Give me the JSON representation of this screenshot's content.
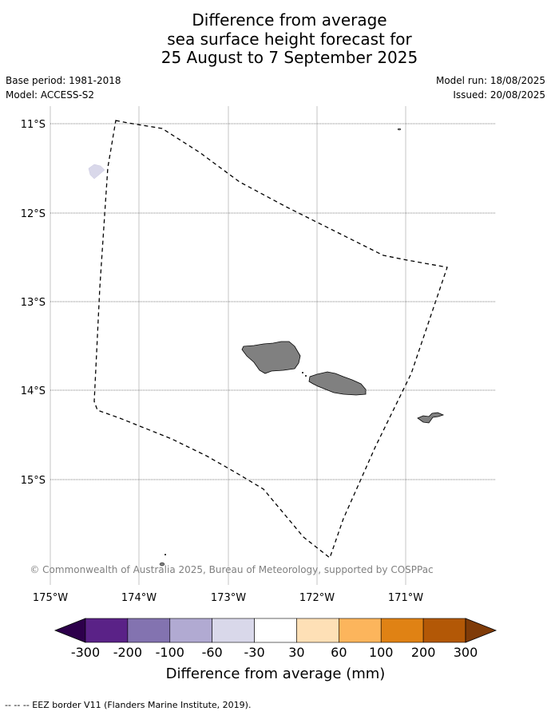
{
  "title": {
    "line1": "Difference from average",
    "line2": "sea surface height forecast for",
    "line3": "25 August to 7 September 2025"
  },
  "meta": {
    "base_period": "Base period: 1981-2018",
    "model": "Model: ACCESS-S2",
    "model_run": "Model run: 18/08/2025",
    "issued": "Issued: 20/08/2025"
  },
  "map": {
    "lat_ticks": [
      "11°S",
      "12°S",
      "13°S",
      "14°S",
      "15°S"
    ],
    "lon_ticks": [
      "175°W",
      "174°W",
      "173°W",
      "172°W",
      "171°W"
    ],
    "copyright": "© Commonwealth of Australia 2025, Bureau of Meteorology, supported by COSPPac"
  },
  "colorbar": {
    "label": "Difference from average (mm)",
    "ticks": [
      "-300",
      "-200",
      "-100",
      "-60",
      "-30",
      "30",
      "60",
      "100",
      "200",
      "300"
    ],
    "colors": [
      "#5a2287",
      "#8373b0",
      "#b1aad2",
      "#d9d8ea",
      "#ffffff",
      "#fee0b6",
      "#fcb55c",
      "#e08214",
      "#b35806"
    ],
    "under_color": "#2d004b",
    "over_color": "#7f3b08"
  },
  "footer": {
    "legend": "--  --  -- EEZ border V11 (Flanders Marine Institute, 2019)."
  }
}
